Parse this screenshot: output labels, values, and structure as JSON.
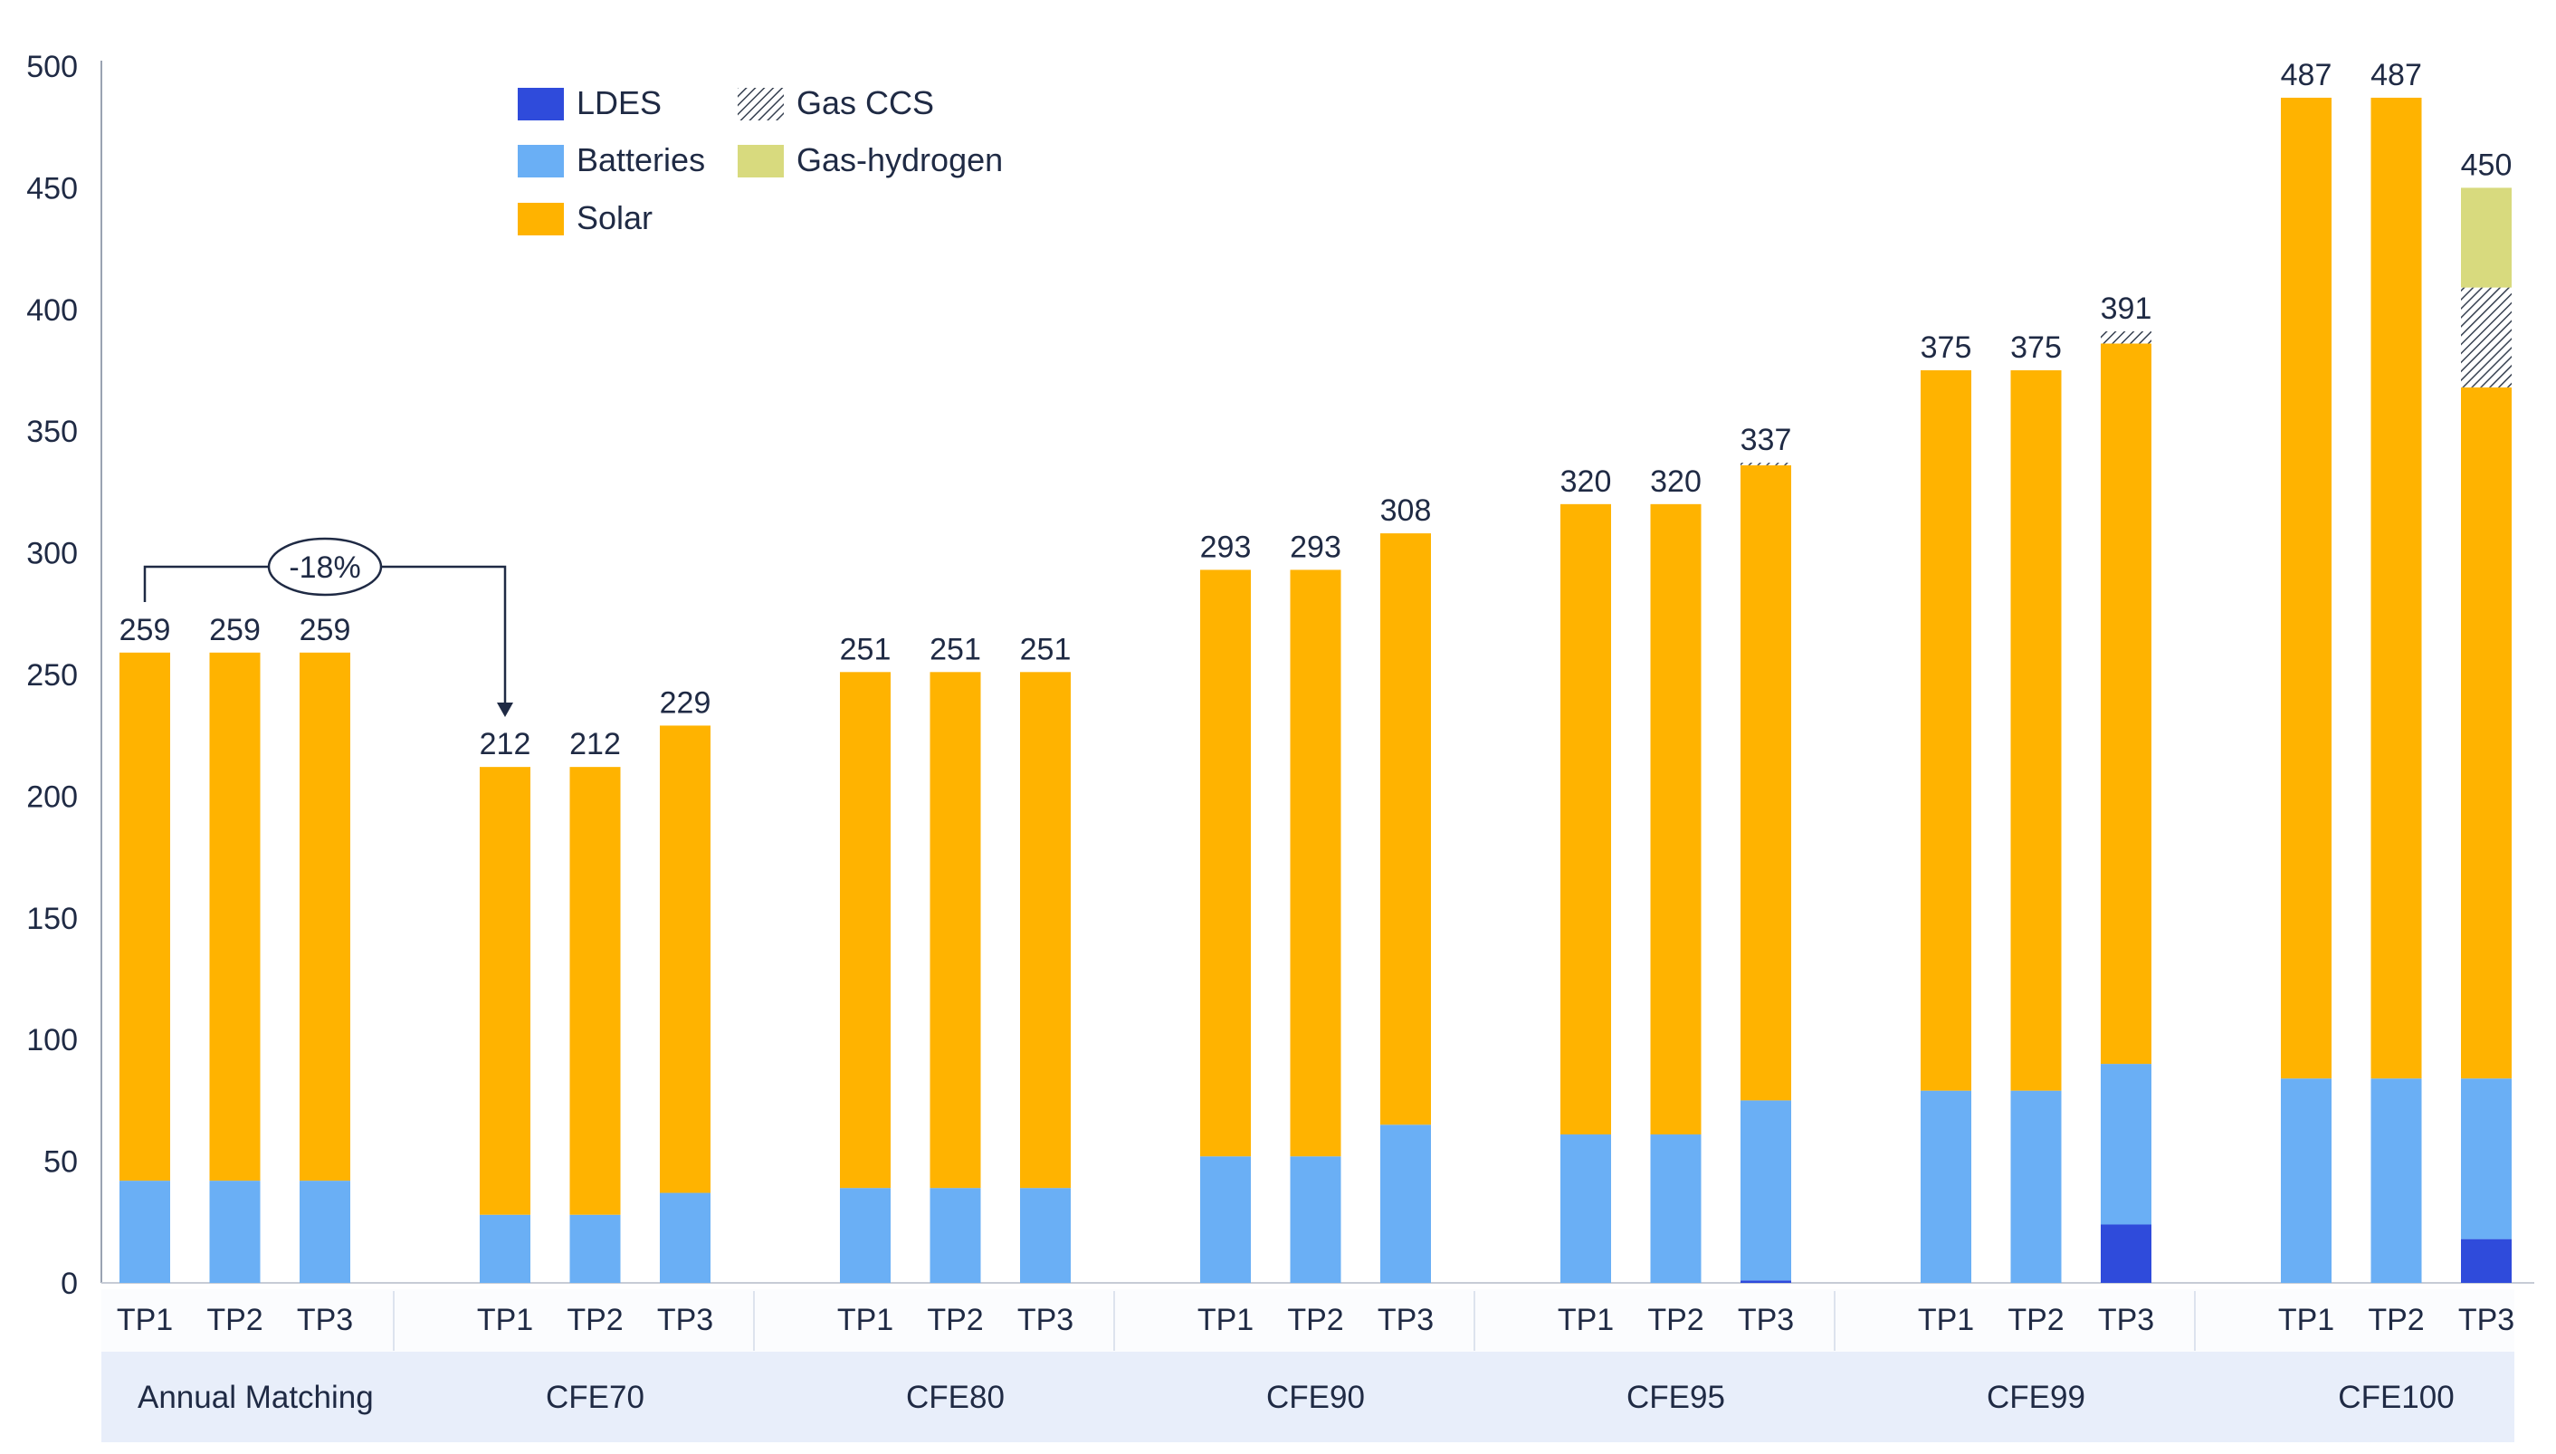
{
  "colors": {
    "ldes": "#2f4bdb",
    "batteries": "#6aaff5",
    "solar": "#ffb300",
    "gas_ccs": "#374151",
    "gas_hydrogen": "#d8da7e",
    "axis_text": "#1f2a44",
    "group_band": "#e8eefa"
  },
  "chart_data": {
    "type": "bar",
    "stacked": true,
    "title": "",
    "xlabel": "",
    "ylabel": "",
    "ylim": [
      0,
      500
    ],
    "yticks": [
      0,
      50,
      100,
      150,
      200,
      250,
      300,
      350,
      400,
      450,
      500
    ],
    "legend": [
      {
        "key": "ldes",
        "label": "LDES",
        "pattern": "solid"
      },
      {
        "key": "gas_ccs",
        "label": "Gas CCS",
        "pattern": "hatch"
      },
      {
        "key": "batteries",
        "label": "Batteries",
        "pattern": "solid"
      },
      {
        "key": "gas_hydrogen",
        "label": "Gas-hydrogen",
        "pattern": "solid"
      },
      {
        "key": "solar",
        "label": "Solar",
        "pattern": "solid"
      }
    ],
    "annotation": {
      "label": "-18%",
      "from": "Annual Matching TP1",
      "to": "CFE70 TP1"
    },
    "groups": [
      {
        "name": "Annual Matching",
        "bars": [
          {
            "label": "TP1",
            "total": "259",
            "ldes": 0,
            "batteries": 42,
            "solar": 217,
            "gas_ccs": 0,
            "gas_hydrogen": 0
          },
          {
            "label": "TP2",
            "total": "259",
            "ldes": 0,
            "batteries": 42,
            "solar": 217,
            "gas_ccs": 0,
            "gas_hydrogen": 0
          },
          {
            "label": "TP3",
            "total": "259",
            "ldes": 0,
            "batteries": 42,
            "solar": 217,
            "gas_ccs": 0,
            "gas_hydrogen": 0
          }
        ]
      },
      {
        "name": "CFE70",
        "bars": [
          {
            "label": "TP1",
            "total": "212",
            "ldes": 0,
            "batteries": 28,
            "solar": 184,
            "gas_ccs": 0,
            "gas_hydrogen": 0
          },
          {
            "label": "TP2",
            "total": "212",
            "ldes": 0,
            "batteries": 28,
            "solar": 184,
            "gas_ccs": 0,
            "gas_hydrogen": 0
          },
          {
            "label": "TP3",
            "total": "229",
            "ldes": 0,
            "batteries": 37,
            "solar": 192,
            "gas_ccs": 0,
            "gas_hydrogen": 0
          }
        ]
      },
      {
        "name": "CFE80",
        "bars": [
          {
            "label": "TP1",
            "total": "251",
            "ldes": 0,
            "batteries": 39,
            "solar": 212,
            "gas_ccs": 0,
            "gas_hydrogen": 0
          },
          {
            "label": "TP2",
            "total": "251",
            "ldes": 0,
            "batteries": 39,
            "solar": 212,
            "gas_ccs": 0,
            "gas_hydrogen": 0
          },
          {
            "label": "TP3",
            "total": "251",
            "ldes": 0,
            "batteries": 39,
            "solar": 212,
            "gas_ccs": 0,
            "gas_hydrogen": 0
          }
        ]
      },
      {
        "name": "CFE90",
        "bars": [
          {
            "label": "TP1",
            "total": "293",
            "ldes": 0,
            "batteries": 52,
            "solar": 241,
            "gas_ccs": 0,
            "gas_hydrogen": 0
          },
          {
            "label": "TP2",
            "total": "293",
            "ldes": 0,
            "batteries": 52,
            "solar": 241,
            "gas_ccs": 0,
            "gas_hydrogen": 0
          },
          {
            "label": "TP3",
            "total": "308",
            "ldes": 0,
            "batteries": 65,
            "solar": 243,
            "gas_ccs": 0,
            "gas_hydrogen": 0
          }
        ]
      },
      {
        "name": "CFE95",
        "bars": [
          {
            "label": "TP1",
            "total": "320",
            "ldes": 0,
            "batteries": 61,
            "solar": 259,
            "gas_ccs": 0,
            "gas_hydrogen": 0
          },
          {
            "label": "TP2",
            "total": "320",
            "ldes": 0,
            "batteries": 61,
            "solar": 259,
            "gas_ccs": 0,
            "gas_hydrogen": 0
          },
          {
            "label": "TP3",
            "total": "337",
            "ldes": 1,
            "batteries": 74,
            "solar": 261,
            "gas_ccs": 1,
            "gas_hydrogen": 0
          }
        ]
      },
      {
        "name": "CFE99",
        "bars": [
          {
            "label": "TP1",
            "total": "375",
            "ldes": 0,
            "batteries": 79,
            "solar": 296,
            "gas_ccs": 0,
            "gas_hydrogen": 0
          },
          {
            "label": "TP2",
            "total": "375",
            "ldes": 0,
            "batteries": 79,
            "solar": 296,
            "gas_ccs": 0,
            "gas_hydrogen": 0
          },
          {
            "label": "TP3",
            "total": "391",
            "ldes": 24,
            "batteries": 66,
            "solar": 296,
            "gas_ccs": 5,
            "gas_hydrogen": 0
          }
        ]
      },
      {
        "name": "CFE100",
        "bars": [
          {
            "label": "TP1",
            "total": "487",
            "ldes": 0,
            "batteries": 84,
            "solar": 403,
            "gas_ccs": 0,
            "gas_hydrogen": 0
          },
          {
            "label": "TP2",
            "total": "487",
            "ldes": 0,
            "batteries": 84,
            "solar": 403,
            "gas_ccs": 0,
            "gas_hydrogen": 0
          },
          {
            "label": "TP3",
            "total": "450",
            "ldes": 18,
            "batteries": 66,
            "solar": 284,
            "gas_ccs": 41,
            "gas_hydrogen": 41
          }
        ]
      }
    ]
  }
}
